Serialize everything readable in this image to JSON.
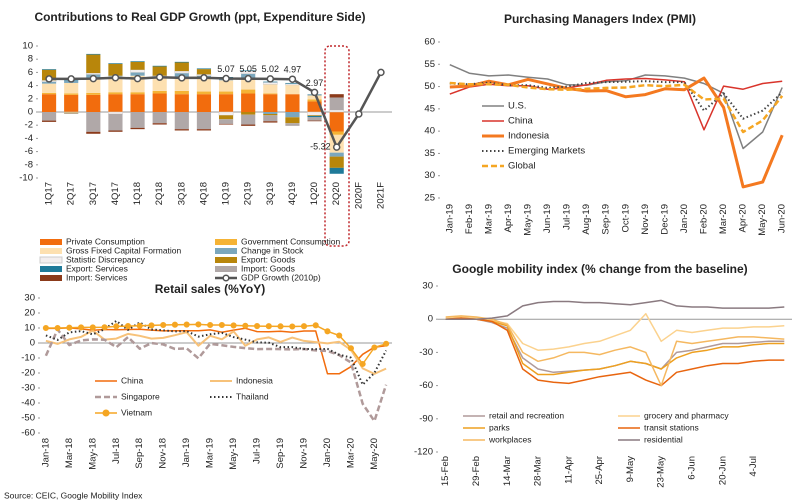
{
  "source": "Source: CEIC, Google Mobility Index",
  "chart_data": [
    {
      "type": "bar",
      "stacked": true,
      "title": "Contributions to Real GDP Growth (ppt, Expenditure Side)",
      "categories": [
        "1Q17",
        "2Q17",
        "3Q17",
        "4Q17",
        "1Q18",
        "2Q18",
        "3Q18",
        "4Q18",
        "1Q19",
        "2Q19",
        "3Q19",
        "4Q19",
        "1Q20",
        "2Q20",
        "2020F",
        "2021F"
      ],
      "ylim": [
        -10,
        10
      ],
      "yticks": [
        -10,
        -8,
        -6,
        -4,
        -2,
        0,
        2,
        4,
        6,
        8,
        10
      ],
      "series": [
        {
          "name": "Private Consumption",
          "color": "#f26c0d",
          "values": [
            2.7,
            2.6,
            2.6,
            2.7,
            2.7,
            2.8,
            2.7,
            2.7,
            2.7,
            2.8,
            2.7,
            2.7,
            1.6,
            -2.96,
            null,
            null
          ]
        },
        {
          "name": "Government Consumption",
          "color": "#f5b335",
          "values": [
            0.2,
            0.2,
            0.3,
            0.3,
            0.3,
            0.4,
            0.5,
            0.4,
            0.4,
            0.6,
            0.1,
            0.0,
            0.3,
            -0.5,
            null,
            null
          ]
        },
        {
          "name": "Gross Fixed Capital Formation",
          "color": "#fde0b0",
          "values": [
            1.4,
            1.6,
            2.3,
            2.4,
            2.5,
            1.9,
            2.1,
            2.1,
            1.7,
            1.6,
            1.4,
            1.4,
            0.6,
            -2.7,
            null,
            null
          ]
        },
        {
          "name": "Change in Stock",
          "color": "#7ba7bd",
          "values": [
            0.3,
            0.4,
            0.5,
            0.1,
            0.5,
            0.3,
            0.6,
            0.3,
            0.4,
            0.8,
            -0.3,
            -0.8,
            0.2,
            -0.6,
            null,
            null
          ]
        },
        {
          "name": "Statistic Discrepancy",
          "color": "#f3eeee",
          "values": [
            0.2,
            -0.1,
            0.2,
            -0.3,
            0.4,
            0.1,
            0.3,
            0.2,
            -0.5,
            0.4,
            0.3,
            0.2,
            -0.5,
            0.3,
            null,
            null
          ]
        },
        {
          "name": "Export: Goods",
          "color": "#b8860b",
          "values": [
            1.6,
            -0.1,
            2.8,
            1.8,
            1.2,
            1.4,
            1.3,
            0.8,
            -0.6,
            -0.4,
            -0.2,
            -0.9,
            -0.1,
            -1.7,
            null,
            null
          ]
        },
        {
          "name": "Export: Services",
          "color": "#1f7a99",
          "values": [
            0.1,
            0.1,
            0.1,
            0.1,
            0.1,
            0.1,
            0.1,
            0.1,
            0.1,
            0.1,
            0.1,
            0.1,
            -0.2,
            -0.9,
            null,
            null
          ]
        },
        {
          "name": "Import: Goods",
          "color": "#b0a8a8",
          "values": [
            -1.3,
            -0.1,
            -3.0,
            -2.5,
            -2.4,
            -1.7,
            -2.6,
            -2.6,
            -0.7,
            -1.5,
            -0.9,
            -0.4,
            -0.5,
            1.9,
            null,
            null
          ]
        },
        {
          "name": "Import: Services",
          "color": "#8b3a1a",
          "values": [
            -0.2,
            0.0,
            -0.3,
            -0.2,
            -0.2,
            -0.2,
            -0.2,
            -0.2,
            -0.1,
            -0.2,
            -0.2,
            0.0,
            -0.1,
            0.5,
            null,
            null
          ]
        },
        {
          "name": "GDP Growth (2010p)",
          "color": "#555555",
          "kind": "line",
          "marker": "circle",
          "width": 2.5,
          "values": [
            5.01,
            5.01,
            5.06,
            5.19,
            5.06,
            5.27,
            5.17,
            5.18,
            5.07,
            5.05,
            5.02,
            4.97,
            2.97,
            -5.32,
            -0.3,
            6.0
          ],
          "value_labels": [
            null,
            null,
            null,
            null,
            null,
            null,
            null,
            null,
            "5.07",
            "5.05",
            "5.02",
            "4.97",
            "2.97",
            "-5.32",
            null,
            null
          ]
        }
      ]
    },
    {
      "type": "line",
      "title": "Purchasing Managers Index (PMI)",
      "categories": [
        "Jan-19",
        "Feb-19",
        "Mar-19",
        "Apr-19",
        "May-19",
        "Jun-19",
        "Jul-19",
        "Aug-19",
        "Sep-19",
        "Oct-19",
        "Nov-19",
        "Dec-19",
        "Jan-20",
        "Feb-20",
        "Mar-20",
        "Apr-20",
        "May-20",
        "Jun-20"
      ],
      "ylim": [
        25,
        60
      ],
      "yticks": [
        25,
        30,
        35,
        40,
        45,
        50,
        55,
        60
      ],
      "series": [
        {
          "name": "U.S.",
          "color": "#808080",
          "style": "solid",
          "width": 1.5,
          "values": [
            54.9,
            53,
            52.4,
            52.6,
            52.1,
            51.7,
            50.4,
            50.3,
            51.1,
            51.3,
            52.6,
            52.4,
            51.9,
            50.7,
            48.5,
            36.1,
            39.8,
            49.8
          ]
        },
        {
          "name": "China",
          "color": "#d9342b",
          "style": "solid",
          "width": 1.5,
          "values": [
            48.3,
            49.9,
            50.5,
            50.2,
            50.2,
            49.4,
            49.7,
            50.4,
            51.4,
            51.7,
            51.8,
            51.5,
            51.1,
            40.3,
            50.1,
            49.4,
            50.7,
            51.2
          ]
        },
        {
          "name": "Indonesia",
          "color": "#f47920",
          "style": "solid",
          "width": 3,
          "values": [
            49.9,
            50.1,
            51.2,
            50.4,
            51.6,
            50.6,
            49.6,
            49,
            49.1,
            47.7,
            48.2,
            49.5,
            49.3,
            51.9,
            45.3,
            27.5,
            28.6,
            39.1
          ]
        },
        {
          "name": "Emerging Markets",
          "color": "#444444",
          "style": "dotted",
          "width": 2,
          "values": [
            50.7,
            50.5,
            50.9,
            50.3,
            50.3,
            49.7,
            50.0,
            50.8,
            51.0,
            51.1,
            51.2,
            51.0,
            51.0,
            44.6,
            48.5,
            42.8,
            44.6,
            48.7
          ]
        },
        {
          "name": "Global",
          "color": "#f5a623",
          "style": "dashed",
          "width": 2.5,
          "values": [
            50.8,
            50.5,
            50.5,
            50.4,
            49.8,
            49.4,
            49.3,
            49.5,
            49.7,
            49.8,
            50.3,
            50.1,
            50.4,
            47.1,
            47.3,
            39.8,
            42.4,
            47.9
          ]
        }
      ]
    },
    {
      "type": "line",
      "title": "Retail sales (%YoY)",
      "categories": [
        "Jan-18",
        null,
        "Mar-18",
        null,
        "May-18",
        null,
        "Jul-18",
        null,
        "Sep-18",
        null,
        "Nov-18",
        null,
        "Jan-19",
        null,
        "Mar-19",
        null,
        "May-19",
        null,
        "Jul-19",
        null,
        "Sep-19",
        null,
        "Nov-19",
        null,
        "Jan-20",
        null,
        "Mar-20",
        null,
        "May-20",
        null
      ],
      "ylim": [
        -60,
        30
      ],
      "yticks": [
        -60,
        -50,
        -40,
        -30,
        -20,
        -10,
        0,
        10,
        20,
        30
      ],
      "series": [
        {
          "name": "China",
          "color": "#f26c0d",
          "style": "solid",
          "width": 1.5,
          "values": [
            9.7,
            9.7,
            10.1,
            9.4,
            8.5,
            9.0,
            8.8,
            9.0,
            9.2,
            8.6,
            8.1,
            8.2,
            8.2,
            8.2,
            8.7,
            7.2,
            8.6,
            9.8,
            7.6,
            7.5,
            7.8,
            7.2,
            8.0,
            8.0,
            -20.5,
            -20.5,
            -15.8,
            -7.5,
            -2.8,
            -1.8
          ]
        },
        {
          "name": "Indonesia",
          "color": "#f7c27a",
          "style": "solid",
          "width": 2,
          "values": [
            1.5,
            -0.6,
            2.4,
            4.1,
            8.3,
            2.3,
            2.9,
            6.1,
            4.8,
            2.9,
            3.4,
            5.2,
            7.2,
            -1.8,
            4.8,
            2.5,
            7.7,
            -1.8,
            2.4,
            3.7,
            0.7,
            3.6,
            1.4,
            0.6,
            -0.3,
            0.8,
            -4.5,
            -16.9,
            -20.6,
            -17.1
          ]
        },
        {
          "name": "Singapore",
          "color": "#b09a9a",
          "style": "dashed",
          "width": 2.5,
          "values": [
            -8.5,
            9.1,
            -1.4,
            1.7,
            2.4,
            2.2,
            -2.8,
            3.9,
            -3.8,
            -0.1,
            -0.9,
            -3.9,
            -3.6,
            -10.2,
            -0.5,
            -1.5,
            -2.6,
            -3.4,
            -4.1,
            -4.0,
            -4.1,
            -4.3,
            -4.0,
            -4.9,
            -5.3,
            -8.1,
            -13.0,
            -40.5,
            -52.1,
            -27.8
          ]
        },
        {
          "name": "Thailand",
          "color": "#333333",
          "style": "dotted",
          "width": 2,
          "values": [
            5.1,
            2.1,
            7.1,
            7.9,
            5.7,
            9.2,
            14.7,
            8.7,
            13.7,
            9.0,
            8.5,
            7.7,
            7.9,
            4.3,
            5.8,
            6.8,
            3.9,
            2.3,
            0.4,
            0.2,
            -2.8,
            -2.7,
            -4.0,
            -4.1,
            -3.9,
            -7.8,
            -9.7,
            -27.8,
            -19.9,
            -5.0
          ]
        },
        {
          "name": "Vietnam",
          "color": "#f5a623",
          "style": "solid",
          "width": 1.5,
          "marker": "circle",
          "values": [
            10.0,
            10.0,
            10.2,
            10.4,
            10.4,
            10.5,
            11.1,
            11.3,
            11.5,
            11.7,
            12.0,
            12.2,
            12.3,
            12.4,
            12.0,
            12.0,
            11.7,
            11.5,
            11.3,
            11.2,
            11.1,
            11.0,
            11.2,
            11.8,
            7.8,
            5.0,
            -3.5,
            -14.0,
            -3.0,
            -0.5
          ]
        }
      ]
    },
    {
      "type": "line",
      "title": "Google mobility index (% change from the baseline)",
      "categories": [
        "15-Feb",
        null,
        "29-Feb",
        null,
        "14-Mar",
        null,
        "28-Mar",
        null,
        "11-Apr",
        null,
        "25-Apr",
        null,
        "9-May",
        null,
        "23-May",
        null,
        "6-Jun",
        null,
        "20-Jun",
        null,
        "4-Jul",
        null,
        null
      ],
      "ylim": [
        -120,
        30
      ],
      "yticks": [
        -120,
        -90,
        -60,
        -30,
        0,
        30
      ],
      "series": [
        {
          "name": "retail and recreation",
          "color": "#b09a9a",
          "style": "solid",
          "width": 1.5,
          "values": [
            0,
            1,
            0,
            -3,
            -8,
            -35,
            -45,
            -48,
            -47,
            -46,
            -45,
            -42,
            -38,
            -40,
            -45,
            -30,
            -28,
            -25,
            -22,
            -22,
            -21,
            -20,
            -20
          ]
        },
        {
          "name": "grocery and pharmacy",
          "color": "#fbd28e",
          "style": "solid",
          "width": 1.5,
          "values": [
            1,
            2,
            1,
            -1,
            -4,
            -22,
            -28,
            -27,
            -25,
            -22,
            -20,
            -15,
            -10,
            5,
            -20,
            -10,
            -12,
            -10,
            -8,
            -8,
            -7,
            -7,
            -6
          ]
        },
        {
          "name": "parks",
          "color": "#eea020",
          "style": "solid",
          "width": 1.5,
          "values": [
            0,
            1,
            0,
            -2,
            -6,
            -40,
            -50,
            -50,
            -48,
            -46,
            -45,
            -42,
            -38,
            -40,
            -45,
            -35,
            -30,
            -28,
            -25,
            -25,
            -23,
            -22,
            -22
          ]
        },
        {
          "name": "transit stations",
          "color": "#e8650f",
          "style": "solid",
          "width": 1.5,
          "values": [
            0,
            1,
            0,
            -2,
            -10,
            -45,
            -55,
            -57,
            -58,
            -55,
            -52,
            -50,
            -48,
            -55,
            -60,
            -48,
            -45,
            -42,
            -40,
            -40,
            -38,
            -37,
            -37
          ]
        },
        {
          "name": "workplaces",
          "color": "#f5b860",
          "style": "solid",
          "width": 1.5,
          "values": [
            2,
            3,
            2,
            0,
            -5,
            -30,
            -38,
            -35,
            -30,
            -30,
            -32,
            -28,
            -25,
            -30,
            -60,
            -20,
            -22,
            -20,
            -18,
            -16,
            -16,
            -17,
            -18
          ]
        },
        {
          "name": "residential",
          "color": "#8a7a80",
          "style": "solid",
          "width": 1.5,
          "values": [
            0,
            0,
            0,
            1,
            3,
            12,
            15,
            16,
            16,
            15,
            15,
            14,
            13,
            15,
            17,
            12,
            11,
            11,
            10,
            10,
            10,
            10,
            11
          ]
        }
      ]
    }
  ]
}
